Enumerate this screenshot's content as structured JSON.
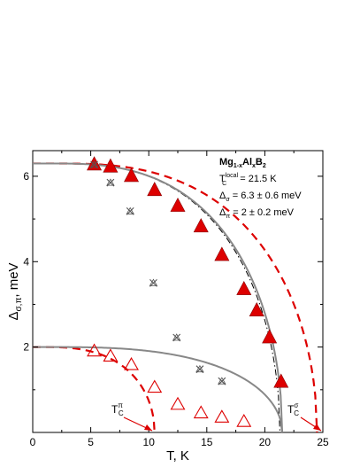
{
  "chart_data": {
    "type": "scatter",
    "xlabel": "T, K",
    "ylabel_main": "Δ",
    "ylabel_sub": "σ,π",
    "ylabel_unit": ", meV",
    "xlim": [
      0,
      25
    ],
    "ylim": [
      0,
      6.6
    ],
    "xticks": [
      0,
      5,
      10,
      15,
      20,
      25
    ],
    "yticks": [
      2,
      4,
      6
    ],
    "grid": false,
    "annotation": {
      "compound": {
        "base1": "Mg",
        "sub1": "1-x",
        "base2": "Al",
        "sub2": "x",
        "base3": "B",
        "sub3": "2"
      },
      "tc_line": {
        "base": "T",
        "sub": "C",
        "sup": "local",
        "rest": " = 21.5 K"
      },
      "delta_sigma": {
        "base": "Δ",
        "sub": "σ",
        "rest": " = 6.3 ± 0.6 meV"
      },
      "delta_pi": {
        "base": "Δ",
        "sub": "π",
        "rest": " = 2 ± 0.2 meV"
      }
    },
    "tc_pi_label": {
      "base": "T",
      "sub": "C",
      "sup": "π"
    },
    "tc_sigma_label": {
      "base": "T",
      "sub": "C",
      "sup": "σ"
    },
    "colors": {
      "filled_triangle": "#dd0000",
      "open_triangle": "#dd0000",
      "x_marker": "#555555",
      "fit_curve": "#888888",
      "dashed": "#dd0000",
      "dash_dot": "#000000"
    },
    "series": [
      {
        "marker": "filled-triangle",
        "x": [
          5.3,
          6.7,
          8.5,
          10.5,
          12.5,
          14.5,
          16.3,
          18.2,
          19.3,
          20.4,
          21.4
        ],
        "y": [
          6.27,
          6.22,
          6.0,
          5.67,
          5.3,
          4.82,
          4.15,
          3.35,
          2.85,
          2.22,
          1.18
        ]
      },
      {
        "marker": "open-triangle",
        "x": [
          5.3,
          6.7,
          8.5,
          10.5,
          12.5,
          14.5,
          16.3,
          18.2
        ],
        "y": [
          1.9,
          1.78,
          1.58,
          1.05,
          0.65,
          0.45,
          0.35,
          0.25
        ]
      },
      {
        "marker": "x-marker",
        "x": [
          5.3,
          6.7,
          8.4,
          10.4,
          12.4,
          14.4,
          16.3
        ],
        "y": [
          6.27,
          5.85,
          5.18,
          3.5,
          2.22,
          1.48,
          1.2
        ]
      }
    ],
    "curves": {
      "sigma_fit": {
        "style": "solid-gray",
        "delta0": 6.3,
        "tc": 21.5
      },
      "pi_fit": {
        "style": "solid-gray",
        "delta0": 2.0,
        "tc": 21.5
      },
      "sigma_bcs_dashed": {
        "style": "dashed-red",
        "delta0": 6.3,
        "tc": 24.5
      },
      "pi_bcs_dashed": {
        "style": "dashed-red",
        "delta0": 2.0,
        "tc": 10.5
      },
      "dash_dot": {
        "style": "dash-dot-black",
        "delta0": 6.3,
        "tc": 21.3
      }
    }
  }
}
